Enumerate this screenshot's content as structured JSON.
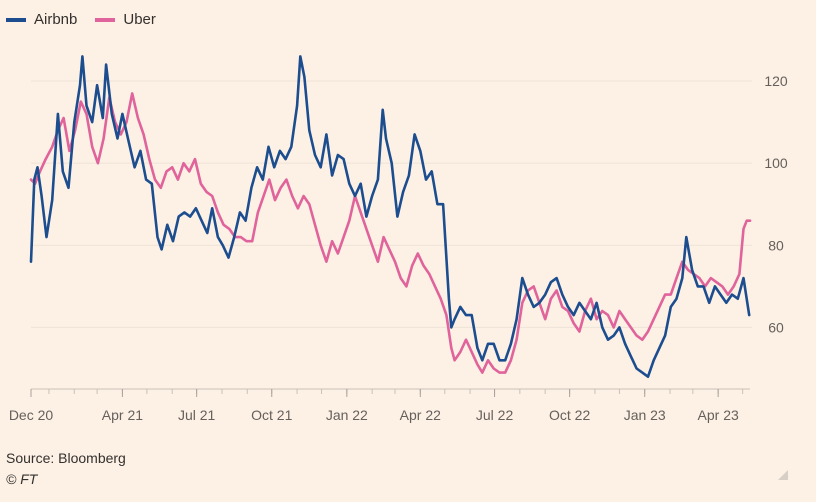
{
  "legend": [
    {
      "name": "Airbnb",
      "color": "#1c4d8f"
    },
    {
      "name": "Uber",
      "color": "#e0639b"
    }
  ],
  "footer": {
    "source": "Source: Bloomberg",
    "copyright": "© FT"
  },
  "chart_data": {
    "type": "line",
    "title": "",
    "xlabel": "",
    "ylabel": "",
    "ylim": [
      45,
      130
    ],
    "yticks": [
      60,
      80,
      100,
      120
    ],
    "x_tick_labels": [
      "Dec 20",
      "Apr 21",
      "Jul 21",
      "Oct 21",
      "Jan 22",
      "Apr 22",
      "Jul 22",
      "Oct 22",
      "Jan 23",
      "Apr 23"
    ],
    "x_tick_dates": [
      "2020-12-10",
      "2021-04-01",
      "2021-07-01",
      "2021-10-01",
      "2022-01-01",
      "2022-04-01",
      "2022-07-01",
      "2022-10-01",
      "2023-01-01",
      "2023-04-01"
    ],
    "x_range": [
      "2020-12-10",
      "2023-05-10"
    ],
    "grid": true,
    "legend_position": "top-left",
    "series": [
      {
        "name": "Airbnb",
        "color": "#1c4d8f",
        "points": [
          [
            "2020-12-10",
            76
          ],
          [
            "2020-12-14",
            96
          ],
          [
            "2020-12-18",
            99
          ],
          [
            "2020-12-23",
            92
          ],
          [
            "2020-12-29",
            82
          ],
          [
            "2021-01-05",
            91
          ],
          [
            "2021-01-12",
            112
          ],
          [
            "2021-01-18",
            98
          ],
          [
            "2021-01-25",
            94
          ],
          [
            "2021-02-01",
            110
          ],
          [
            "2021-02-08",
            119
          ],
          [
            "2021-02-11",
            126
          ],
          [
            "2021-02-16",
            114
          ],
          [
            "2021-02-23",
            110
          ],
          [
            "2021-03-01",
            119
          ],
          [
            "2021-03-08",
            111
          ],
          [
            "2021-03-12",
            124
          ],
          [
            "2021-03-19",
            112
          ],
          [
            "2021-03-26",
            106
          ],
          [
            "2021-04-01",
            112
          ],
          [
            "2021-04-09",
            105
          ],
          [
            "2021-04-16",
            99
          ],
          [
            "2021-04-23",
            103
          ],
          [
            "2021-04-30",
            96
          ],
          [
            "2021-05-07",
            95
          ],
          [
            "2021-05-14",
            82
          ],
          [
            "2021-05-19",
            79
          ],
          [
            "2021-05-26",
            85
          ],
          [
            "2021-06-02",
            81
          ],
          [
            "2021-06-09",
            87
          ],
          [
            "2021-06-16",
            88
          ],
          [
            "2021-06-23",
            87
          ],
          [
            "2021-06-30",
            89
          ],
          [
            "2021-07-07",
            86
          ],
          [
            "2021-07-14",
            83
          ],
          [
            "2021-07-20",
            89
          ],
          [
            "2021-07-27",
            82
          ],
          [
            "2021-08-02",
            80
          ],
          [
            "2021-08-09",
            77
          ],
          [
            "2021-08-16",
            82
          ],
          [
            "2021-08-23",
            88
          ],
          [
            "2021-08-30",
            86
          ],
          [
            "2021-09-06",
            94
          ],
          [
            "2021-09-13",
            99
          ],
          [
            "2021-09-20",
            96
          ],
          [
            "2021-09-27",
            104
          ],
          [
            "2021-10-04",
            99
          ],
          [
            "2021-10-11",
            103
          ],
          [
            "2021-10-18",
            101
          ],
          [
            "2021-10-25",
            104
          ],
          [
            "2021-11-01",
            114
          ],
          [
            "2021-11-05",
            126
          ],
          [
            "2021-11-10",
            121
          ],
          [
            "2021-11-16",
            108
          ],
          [
            "2021-11-23",
            102
          ],
          [
            "2021-11-30",
            99
          ],
          [
            "2021-12-07",
            107
          ],
          [
            "2021-12-14",
            97
          ],
          [
            "2021-12-21",
            102
          ],
          [
            "2021-12-28",
            101
          ],
          [
            "2022-01-04",
            95
          ],
          [
            "2022-01-11",
            92
          ],
          [
            "2022-01-18",
            95
          ],
          [
            "2022-01-25",
            87
          ],
          [
            "2022-02-01",
            92
          ],
          [
            "2022-02-08",
            96
          ],
          [
            "2022-02-14",
            113
          ],
          [
            "2022-02-18",
            106
          ],
          [
            "2022-02-25",
            100
          ],
          [
            "2022-03-04",
            87
          ],
          [
            "2022-03-11",
            93
          ],
          [
            "2022-03-18",
            97
          ],
          [
            "2022-03-25",
            107
          ],
          [
            "2022-04-01",
            103
          ],
          [
            "2022-04-08",
            96
          ],
          [
            "2022-04-15",
            98
          ],
          [
            "2022-04-22",
            90
          ],
          [
            "2022-04-29",
            90
          ],
          [
            "2022-05-06",
            67
          ],
          [
            "2022-05-09",
            60
          ],
          [
            "2022-05-13",
            62
          ],
          [
            "2022-05-20",
            65
          ],
          [
            "2022-05-27",
            63
          ],
          [
            "2022-06-03",
            63
          ],
          [
            "2022-06-10",
            55
          ],
          [
            "2022-06-16",
            52
          ],
          [
            "2022-06-23",
            56
          ],
          [
            "2022-06-30",
            56
          ],
          [
            "2022-07-07",
            52
          ],
          [
            "2022-07-14",
            52
          ],
          [
            "2022-07-21",
            56
          ],
          [
            "2022-07-28",
            62
          ],
          [
            "2022-08-04",
            72
          ],
          [
            "2022-08-11",
            68
          ],
          [
            "2022-08-18",
            65
          ],
          [
            "2022-08-25",
            66
          ],
          [
            "2022-09-01",
            68
          ],
          [
            "2022-09-08",
            71
          ],
          [
            "2022-09-15",
            72
          ],
          [
            "2022-09-22",
            68
          ],
          [
            "2022-09-29",
            65
          ],
          [
            "2022-10-06",
            63
          ],
          [
            "2022-10-13",
            66
          ],
          [
            "2022-10-20",
            64
          ],
          [
            "2022-10-27",
            62
          ],
          [
            "2022-11-03",
            66
          ],
          [
            "2022-11-10",
            60
          ],
          [
            "2022-11-17",
            57
          ],
          [
            "2022-11-24",
            58
          ],
          [
            "2022-12-01",
            60
          ],
          [
            "2022-12-08",
            56
          ],
          [
            "2022-12-15",
            53
          ],
          [
            "2022-12-22",
            50
          ],
          [
            "2022-12-29",
            49
          ],
          [
            "2023-01-05",
            48
          ],
          [
            "2023-01-12",
            52
          ],
          [
            "2023-01-19",
            55
          ],
          [
            "2023-01-26",
            58
          ],
          [
            "2023-02-02",
            65
          ],
          [
            "2023-02-09",
            67
          ],
          [
            "2023-02-16",
            72
          ],
          [
            "2023-02-21",
            82
          ],
          [
            "2023-02-28",
            74
          ],
          [
            "2023-03-07",
            70
          ],
          [
            "2023-03-14",
            70
          ],
          [
            "2023-03-21",
            66
          ],
          [
            "2023-03-28",
            70
          ],
          [
            "2023-04-04",
            68
          ],
          [
            "2023-04-11",
            66
          ],
          [
            "2023-04-18",
            68
          ],
          [
            "2023-04-25",
            67
          ],
          [
            "2023-05-02",
            72
          ],
          [
            "2023-05-09",
            63
          ]
        ]
      },
      {
        "name": "Uber",
        "color": "#e0639b",
        "points": [
          [
            "2020-12-10",
            96
          ],
          [
            "2020-12-15",
            95
          ],
          [
            "2020-12-21",
            98
          ],
          [
            "2020-12-28",
            101
          ],
          [
            "2021-01-05",
            104
          ],
          [
            "2021-01-12",
            108
          ],
          [
            "2021-01-19",
            111
          ],
          [
            "2021-01-26",
            103
          ],
          [
            "2021-02-02",
            108
          ],
          [
            "2021-02-09",
            115
          ],
          [
            "2021-02-16",
            112
          ],
          [
            "2021-02-23",
            104
          ],
          [
            "2021-03-02",
            100
          ],
          [
            "2021-03-09",
            106
          ],
          [
            "2021-03-16",
            116
          ],
          [
            "2021-03-23",
            110
          ],
          [
            "2021-03-30",
            107
          ],
          [
            "2021-04-06",
            110
          ],
          [
            "2021-04-13",
            117
          ],
          [
            "2021-04-20",
            111
          ],
          [
            "2021-04-27",
            107
          ],
          [
            "2021-05-04",
            101
          ],
          [
            "2021-05-11",
            96
          ],
          [
            "2021-05-18",
            94
          ],
          [
            "2021-05-25",
            98
          ],
          [
            "2021-06-01",
            99
          ],
          [
            "2021-06-08",
            96
          ],
          [
            "2021-06-15",
            100
          ],
          [
            "2021-06-22",
            98
          ],
          [
            "2021-06-29",
            101
          ],
          [
            "2021-07-06",
            95
          ],
          [
            "2021-07-13",
            93
          ],
          [
            "2021-07-20",
            92
          ],
          [
            "2021-07-27",
            88
          ],
          [
            "2021-08-03",
            85
          ],
          [
            "2021-08-10",
            84
          ],
          [
            "2021-08-17",
            82
          ],
          [
            "2021-08-24",
            82
          ],
          [
            "2021-08-31",
            81
          ],
          [
            "2021-09-07",
            81
          ],
          [
            "2021-09-14",
            88
          ],
          [
            "2021-09-21",
            92
          ],
          [
            "2021-09-28",
            96
          ],
          [
            "2021-10-05",
            91
          ],
          [
            "2021-10-12",
            94
          ],
          [
            "2021-10-19",
            96
          ],
          [
            "2021-10-26",
            92
          ],
          [
            "2021-11-02",
            89
          ],
          [
            "2021-11-09",
            92
          ],
          [
            "2021-11-16",
            90
          ],
          [
            "2021-11-23",
            85
          ],
          [
            "2021-11-30",
            80
          ],
          [
            "2021-12-07",
            76
          ],
          [
            "2021-12-14",
            81
          ],
          [
            "2021-12-21",
            78
          ],
          [
            "2021-12-28",
            82
          ],
          [
            "2022-01-04",
            86
          ],
          [
            "2022-01-11",
            92
          ],
          [
            "2022-01-18",
            88
          ],
          [
            "2022-01-25",
            84
          ],
          [
            "2022-02-01",
            80
          ],
          [
            "2022-02-08",
            76
          ],
          [
            "2022-02-15",
            82
          ],
          [
            "2022-02-22",
            79
          ],
          [
            "2022-03-01",
            76
          ],
          [
            "2022-03-08",
            72
          ],
          [
            "2022-03-15",
            70
          ],
          [
            "2022-03-22",
            75
          ],
          [
            "2022-03-29",
            78
          ],
          [
            "2022-04-05",
            75
          ],
          [
            "2022-04-12",
            73
          ],
          [
            "2022-04-19",
            70
          ],
          [
            "2022-04-26",
            67
          ],
          [
            "2022-05-03",
            63
          ],
          [
            "2022-05-09",
            55
          ],
          [
            "2022-05-13",
            52
          ],
          [
            "2022-05-20",
            54
          ],
          [
            "2022-05-27",
            57
          ],
          [
            "2022-06-03",
            54
          ],
          [
            "2022-06-10",
            51
          ],
          [
            "2022-06-16",
            49
          ],
          [
            "2022-06-23",
            52
          ],
          [
            "2022-06-30",
            50
          ],
          [
            "2022-07-07",
            49
          ],
          [
            "2022-07-14",
            49
          ],
          [
            "2022-07-21",
            52
          ],
          [
            "2022-07-28",
            57
          ],
          [
            "2022-08-04",
            66
          ],
          [
            "2022-08-11",
            69
          ],
          [
            "2022-08-18",
            70
          ],
          [
            "2022-08-25",
            66
          ],
          [
            "2022-09-01",
            62
          ],
          [
            "2022-09-08",
            67
          ],
          [
            "2022-09-15",
            69
          ],
          [
            "2022-09-22",
            65
          ],
          [
            "2022-09-29",
            64
          ],
          [
            "2022-10-06",
            61
          ],
          [
            "2022-10-13",
            59
          ],
          [
            "2022-10-20",
            64
          ],
          [
            "2022-10-27",
            67
          ],
          [
            "2022-11-03",
            62
          ],
          [
            "2022-11-10",
            64
          ],
          [
            "2022-11-17",
            63
          ],
          [
            "2022-11-24",
            60
          ],
          [
            "2022-12-01",
            64
          ],
          [
            "2022-12-08",
            62
          ],
          [
            "2022-12-15",
            60
          ],
          [
            "2022-12-22",
            58
          ],
          [
            "2022-12-29",
            57
          ],
          [
            "2023-01-05",
            59
          ],
          [
            "2023-01-12",
            62
          ],
          [
            "2023-01-19",
            65
          ],
          [
            "2023-01-26",
            68
          ],
          [
            "2023-02-02",
            68
          ],
          [
            "2023-02-09",
            72
          ],
          [
            "2023-02-16",
            76
          ],
          [
            "2023-02-23",
            74
          ],
          [
            "2023-03-02",
            73
          ],
          [
            "2023-03-09",
            72
          ],
          [
            "2023-03-16",
            70
          ],
          [
            "2023-03-23",
            72
          ],
          [
            "2023-03-30",
            71
          ],
          [
            "2023-04-06",
            70
          ],
          [
            "2023-04-13",
            68
          ],
          [
            "2023-04-20",
            70
          ],
          [
            "2023-04-27",
            73
          ],
          [
            "2023-05-02",
            84
          ],
          [
            "2023-05-06",
            86
          ],
          [
            "2023-05-10",
            86
          ]
        ]
      }
    ]
  }
}
